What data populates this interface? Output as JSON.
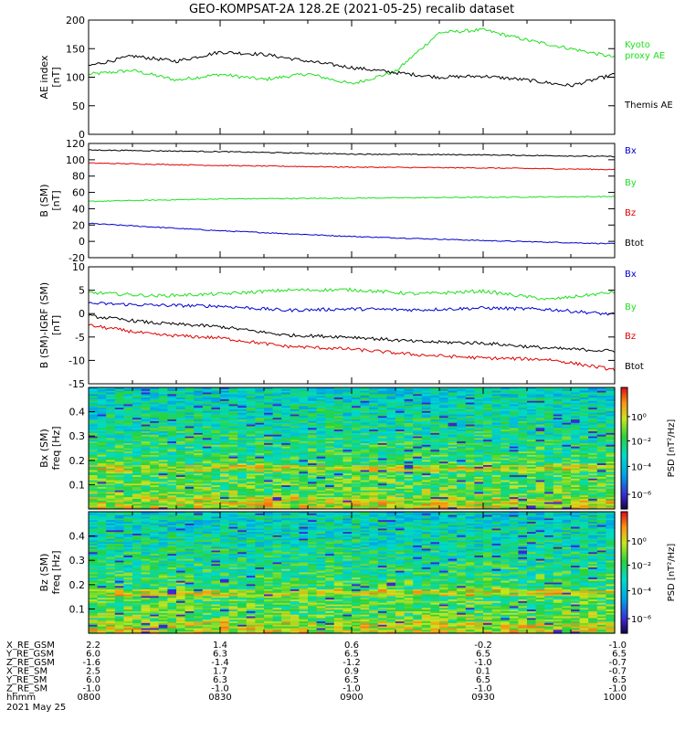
{
  "title": "GEO-KOMPSAT-2A 128.2E (2021-05-25) recalib dataset",
  "colors": {
    "black": "#000000",
    "red": "#e00000",
    "green": "#20e020",
    "blue": "#0000d0"
  },
  "chart_data": [
    {
      "type": "line",
      "ylabel": [
        "AE index",
        "[nT]"
      ],
      "ylim": [
        0,
        200
      ],
      "yticks": [
        "0",
        "50",
        "100",
        "150",
        "200"
      ],
      "x": [
        "0800",
        "0810",
        "0820",
        "0830",
        "0840",
        "0850",
        "0900",
        "0910",
        "0920",
        "0930",
        "0940",
        "0950",
        "1000"
      ],
      "series": [
        {
          "name": "Kyoto proxy AE",
          "label_lines": [
            "Kyoto",
            "proxy AE"
          ],
          "color": "green",
          "values": [
            105,
            112,
            95,
            105,
            96,
            106,
            88,
            110,
            178,
            183,
            165,
            150,
            135
          ]
        },
        {
          "name": "Themis AE",
          "label_lines": [
            "Themis AE"
          ],
          "color": "black",
          "values": [
            120,
            137,
            128,
            144,
            140,
            128,
            117,
            108,
            100,
            102,
            95,
            85,
            105
          ]
        }
      ]
    },
    {
      "type": "line",
      "ylabel": [
        "B (SM)",
        "[nT]"
      ],
      "ylim": [
        -20,
        120
      ],
      "yticks": [
        "-20",
        "0",
        "20",
        "40",
        "60",
        "80",
        "100",
        "120"
      ],
      "x": [
        "0800",
        "0830",
        "0900",
        "0930",
        "1000"
      ],
      "series": [
        {
          "name": "Bx",
          "color": "blue",
          "values": [
            22,
            13,
            6,
            1,
            -3
          ]
        },
        {
          "name": "By",
          "color": "green",
          "values": [
            49,
            52,
            53,
            54,
            55
          ]
        },
        {
          "name": "Bz",
          "color": "red",
          "values": [
            96,
            93,
            91,
            90,
            88
          ]
        },
        {
          "name": "Btot",
          "color": "black",
          "values": [
            112,
            110,
            107,
            106,
            104
          ]
        }
      ]
    },
    {
      "type": "line",
      "ylabel": [
        "B (SM)-IGRF (SM)",
        "[nT]"
      ],
      "ylim": [
        -15,
        10
      ],
      "yticks": [
        "-15",
        "-10",
        "-5",
        "0",
        "5",
        "10"
      ],
      "x": [
        "0800",
        "0815",
        "0830",
        "0845",
        "0900",
        "0915",
        "0930",
        "0945",
        "1000"
      ],
      "series": [
        {
          "name": "Bx",
          "color": "blue",
          "values": [
            2.2,
            1.8,
            1.6,
            0.7,
            1.0,
            0.8,
            1.2,
            0.9,
            -0.2
          ]
        },
        {
          "name": "By",
          "color": "green",
          "values": [
            4.5,
            3.8,
            4.2,
            5.0,
            5.1,
            4.2,
            4.8,
            3.0,
            4.6
          ]
        },
        {
          "name": "Bz",
          "color": "red",
          "values": [
            -2.5,
            -4.5,
            -5.2,
            -7.0,
            -7.6,
            -8.8,
            -9.5,
            -9.8,
            -12
          ]
        },
        {
          "name": "Btot",
          "color": "black",
          "values": [
            -0.5,
            -2.0,
            -2.8,
            -4.6,
            -5.0,
            -6.0,
            -6.3,
            -7.4,
            -8.0
          ]
        }
      ]
    },
    {
      "type": "heatmap",
      "ylabel": [
        "Bx (SM)",
        "freq [Hz]"
      ],
      "ylim": [
        0,
        0.5
      ],
      "yticks": [
        "0.1",
        "0.2",
        "0.3",
        "0.4"
      ],
      "colorbar": {
        "label": "PSD [nT²/Hz]",
        "ticks": [
          "10⁰",
          "10⁻²",
          "10⁻⁴",
          "10⁻⁶"
        ]
      }
    },
    {
      "type": "heatmap",
      "ylabel": [
        "Bz (SM)",
        "freq [Hz]"
      ],
      "ylim": [
        0,
        0.5
      ],
      "yticks": [
        "0.1",
        "0.2",
        "0.3",
        "0.4"
      ],
      "colorbar": {
        "label": "PSD [nT²/Hz]",
        "ticks": [
          "10⁰",
          "10⁻²",
          "10⁻⁴",
          "10⁻⁶"
        ]
      }
    }
  ],
  "ephemeris": {
    "rows": [
      {
        "label": "X_RE_GSM",
        "values": [
          "2.2",
          "1.4",
          "0.6",
          "-0.2",
          "-1.0"
        ]
      },
      {
        "label": "Y_RE_GSM",
        "values": [
          "6.0",
          "6.3",
          "6.5",
          "6.5",
          "6.5"
        ]
      },
      {
        "label": "Z_RE_GSM",
        "values": [
          "-1.6",
          "-1.4",
          "-1.2",
          "-1.0",
          "-0.7"
        ]
      },
      {
        "label": "X_RE_SM",
        "values": [
          "2.5",
          "1.7",
          "0.9",
          "0.1",
          "-0.7"
        ]
      },
      {
        "label": "Y_RE_SM",
        "values": [
          "6.0",
          "6.3",
          "6.5",
          "6.5",
          "6.5"
        ]
      },
      {
        "label": "Z_RE_SM",
        "values": [
          "-1.0",
          "-1.0",
          "-1.0",
          "-1.0",
          "-1.0"
        ]
      },
      {
        "label": "hhmm",
        "values": [
          "0800",
          "0830",
          "0900",
          "0930",
          "1000"
        ]
      }
    ],
    "date": "2021 May 25"
  }
}
